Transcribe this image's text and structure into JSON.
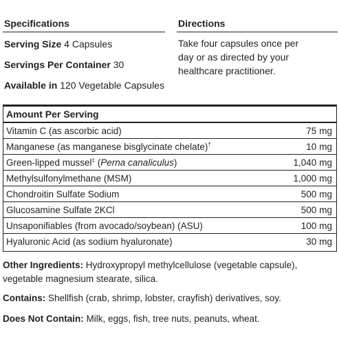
{
  "specifications": {
    "title": "Specifications",
    "serving_size_label": "Serving Size",
    "serving_size_value": "4 Capsules",
    "servings_per_container_label": "Servings Per Container",
    "servings_per_container_value": "30",
    "available_label": "Available in",
    "available_value": "120 Vegetable Capsules"
  },
  "directions": {
    "title": "Directions",
    "text": "Take four capsules once per day or as directed by your healthcare practitioner."
  },
  "table": {
    "header": "Amount Per Serving",
    "rows": [
      {
        "name": "Vitamin C (as ascorbic acid)",
        "amount": "75",
        "unit": "mg"
      },
      {
        "name": "Manganese (as manganese bisglycinate chelate)",
        "mark": "†",
        "amount": "10",
        "unit": "mg"
      },
      {
        "name": "Green-lipped mussel",
        "mark": "‡",
        "name_suffix_open": " (",
        "latin": "Perna canaliculus",
        "name_suffix_close": ")",
        "amount": "1,040",
        "unit": "mg"
      },
      {
        "name": "Methylsulfonylmethane (MSM)",
        "amount": "1,000",
        "unit": "mg"
      },
      {
        "name": "Chondroitin Sulfate Sodium",
        "amount": "500",
        "unit": "mg"
      },
      {
        "name": "Glucosamine Sulfate 2KCl",
        "amount": "500",
        "unit": "mg"
      },
      {
        "name": "Unsaponifiables (from avocado/soybean) (ASU)",
        "amount": "100",
        "unit": "mg"
      },
      {
        "name": "Hyaluronic Acid (as sodium hyaluronate)",
        "amount": "30",
        "unit": "mg"
      }
    ]
  },
  "other_ingredients": {
    "label": "Other Ingredients:",
    "text": " Hydroxypropyl methylcellulose (vegetable capsule), vegetable magnesium stearate, silica."
  },
  "contains": {
    "label": "Contains:",
    "text": " Shellfish (crab, shrimp, lobster, crayfish) derivatives, soy."
  },
  "does_not_contain": {
    "label": "Does Not Contain:",
    "text": " Milk, eggs, fish, tree nuts, peanuts, wheat."
  }
}
